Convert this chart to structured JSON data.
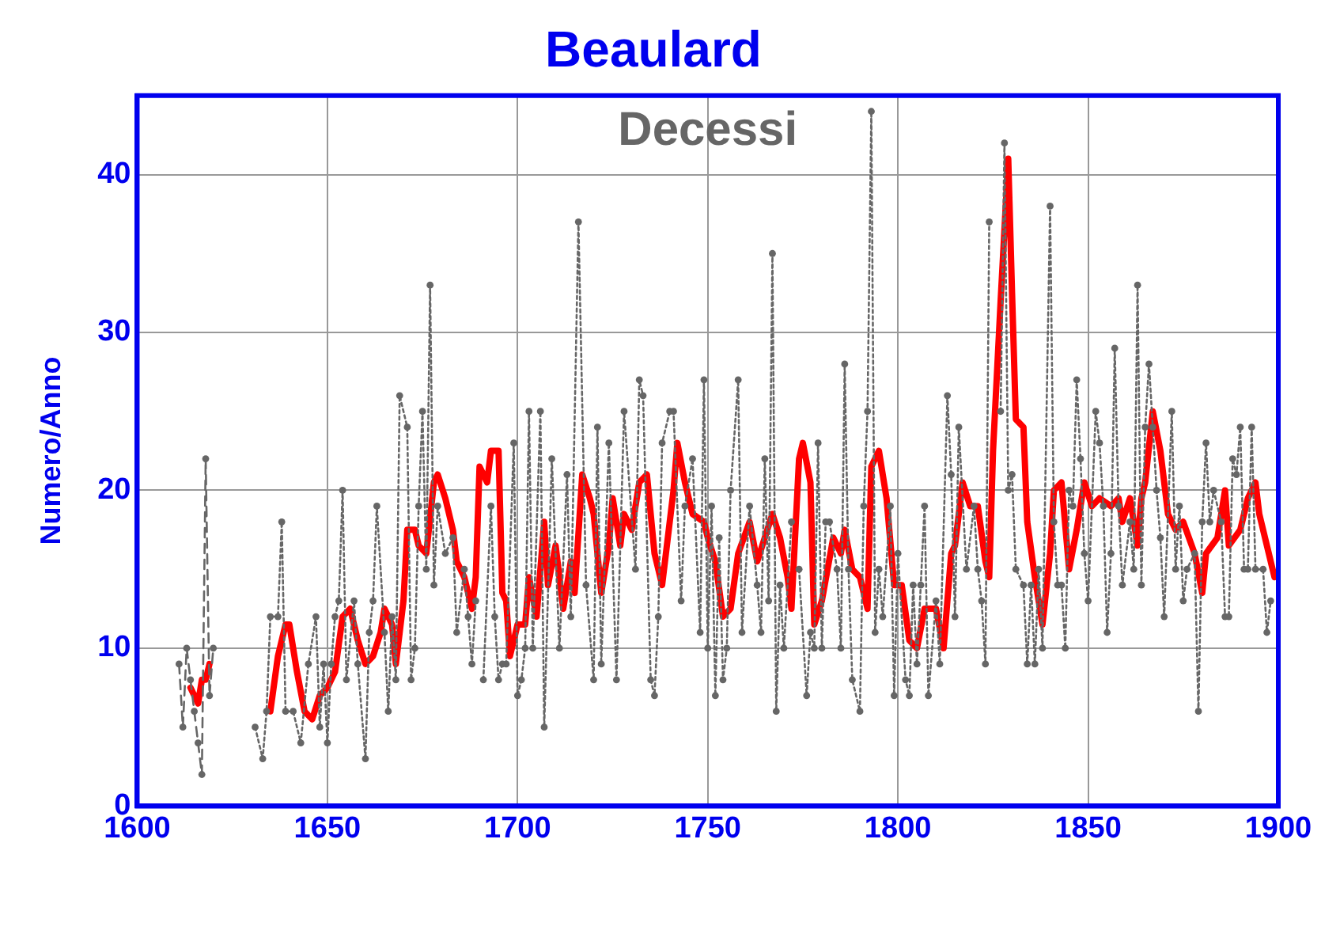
{
  "chart_data": {
    "type": "line",
    "title": "Beaulard",
    "ylabel": "Numero/Anno",
    "annotations": [
      "Decessi"
    ],
    "xlim": [
      1600,
      1900
    ],
    "xticks": [
      1600,
      1650,
      1700,
      1750,
      1800,
      1850,
      1900
    ],
    "ylim": [
      0,
      45
    ],
    "yticks": [
      0,
      10,
      20,
      30,
      40
    ],
    "grid": true,
    "legend": false,
    "series": [
      {
        "color": "#666666",
        "marker": "circle",
        "line_style": "dashed",
        "x": [
          1611,
          1612,
          1613,
          1614,
          1615,
          1616,
          1617,
          1618,
          1619,
          1620
        ],
        "values": [
          9,
          5,
          10,
          8,
          6,
          4,
          2,
          22,
          7,
          10
        ]
      },
      {
        "color": "#666666",
        "marker": "circle",
        "line_style": "dotted",
        "x": [
          1631,
          1633,
          1634,
          1635,
          1637,
          1638,
          1639,
          1641,
          1643,
          1645,
          1647,
          1648,
          1649,
          1650,
          1651,
          1652,
          1653,
          1654,
          1655,
          1657,
          1658,
          1660,
          1661,
          1662,
          1663,
          1665,
          1666,
          1667,
          1668,
          1669,
          1671,
          1672,
          1673,
          1674,
          1675,
          1676,
          1677,
          1678,
          1679,
          1681,
          1683,
          1684,
          1686,
          1687,
          1688,
          1689,
          1690,
          1691,
          1693,
          1694,
          1695,
          1696,
          1697,
          1699,
          1700,
          1701,
          1702,
          1703,
          1704,
          1706,
          1707,
          1709,
          1711,
          1713,
          1714,
          1716,
          1718,
          1720,
          1721,
          1722,
          1724,
          1726,
          1728,
          1731,
          1732,
          1733,
          1735,
          1736,
          1737,
          1738,
          1740,
          1741,
          1743,
          1744,
          1746,
          1748,
          1749,
          1750,
          1751,
          1752,
          1753,
          1754,
          1755,
          1756,
          1758,
          1759,
          1761,
          1763,
          1764,
          1765,
          1766,
          1767,
          1768,
          1769,
          1770,
          1772,
          1773,
          1774,
          1776,
          1777,
          1778,
          1779,
          1780,
          1781,
          1782,
          1784,
          1785,
          1786,
          1787,
          1788,
          1790,
          1791,
          1792,
          1793,
          1794,
          1795,
          1796,
          1798,
          1799,
          1800,
          1802,
          1803,
          1804,
          1805,
          1806,
          1807,
          1808,
          1810,
          1811,
          1813,
          1814,
          1815,
          1816,
          1818,
          1820,
          1821,
          1822,
          1823,
          1824,
          1825,
          1826,
          1827,
          1828,
          1829,
          1830,
          1831,
          1833,
          1834,
          1835,
          1836,
          1837,
          1838,
          1840,
          1841,
          1842,
          1843,
          1844,
          1845,
          1846,
          1847,
          1848,
          1849,
          1850,
          1852,
          1853,
          1854,
          1855,
          1856,
          1857,
          1858,
          1859,
          1861,
          1862,
          1863,
          1864,
          1865,
          1866,
          1867,
          1868,
          1869,
          1870,
          1872,
          1873,
          1874,
          1875,
          1876,
          1878,
          1879,
          1880,
          1881,
          1882,
          1883,
          1885,
          1886,
          1887,
          1888,
          1889,
          1890,
          1891,
          1892,
          1893,
          1894,
          1896,
          1897,
          1898
        ],
        "values": [
          5,
          3,
          6,
          12,
          12,
          18,
          6,
          6,
          4,
          9,
          12,
          5,
          9,
          4,
          9,
          12,
          13,
          20,
          8,
          13,
          9,
          3,
          11,
          13,
          19,
          11,
          6,
          12,
          8,
          26,
          24,
          8,
          10,
          19,
          25,
          15,
          33,
          14,
          19,
          16,
          17,
          11,
          15,
          12,
          9,
          13,
          null,
          8,
          19,
          12,
          8,
          9,
          9,
          23,
          7,
          8,
          10,
          25,
          10,
          25,
          5,
          22,
          10,
          21,
          12,
          37,
          14,
          8,
          24,
          9,
          23,
          8,
          25,
          15,
          27,
          26,
          8,
          7,
          12,
          23,
          25,
          25,
          13,
          19,
          22,
          11,
          27,
          10,
          19,
          7,
          17,
          8,
          10,
          20,
          27,
          11,
          19,
          14,
          11,
          22,
          13,
          35,
          6,
          14,
          10,
          18,
          null,
          15,
          7,
          11,
          10,
          23,
          10,
          18,
          18,
          15,
          10,
          28,
          15,
          8,
          6,
          19,
          25,
          44,
          11,
          15,
          12,
          19,
          7,
          16,
          8,
          7,
          14,
          9,
          14,
          19,
          7,
          13,
          9,
          26,
          21,
          12,
          24,
          15,
          19,
          15,
          13,
          9,
          37,
          null,
          null,
          25,
          42,
          20,
          21,
          15,
          14,
          9,
          14,
          9,
          15,
          10,
          38,
          18,
          14,
          14,
          10,
          20,
          19,
          27,
          22,
          16,
          13,
          25,
          23,
          19,
          11,
          16,
          29,
          19,
          14,
          18,
          15,
          33,
          14,
          24,
          28,
          24,
          20,
          17,
          12,
          25,
          15,
          19,
          13,
          15,
          16,
          6,
          18,
          23,
          18,
          20,
          18,
          12,
          12,
          22,
          21,
          24,
          15,
          15,
          24,
          15,
          15,
          11,
          13
        ]
      },
      {
        "color": "#ff0000",
        "marker": "none",
        "line_style": "solid",
        "x": [
          1614,
          1615,
          1616,
          1617,
          1618,
          1619,
          1625,
          1635,
          1637,
          1639,
          1640,
          1642,
          1644,
          1646,
          1648,
          1650,
          1652,
          1654,
          1656,
          1658,
          1660,
          1662,
          1664,
          1665,
          1667,
          1668,
          1670,
          1671,
          1673,
          1674,
          1676,
          1678,
          1679,
          1681,
          1683,
          1684,
          1686,
          1688,
          1689,
          1690,
          1692,
          1693,
          1695,
          1696,
          1697,
          1698,
          1700,
          1702,
          1703,
          1705,
          1707,
          1708,
          1710,
          1712,
          1714,
          1715,
          1717,
          1719,
          1720,
          1722,
          1724,
          1725,
          1727,
          1728,
          1730,
          1732,
          1734,
          1736,
          1738,
          1741,
          1742,
          1744,
          1746,
          1749,
          1750,
          1752,
          1754,
          1756,
          1758,
          1761,
          1763,
          1765,
          1767,
          1769,
          1771,
          1772,
          1774,
          1775,
          1777,
          1778,
          1780,
          1783,
          1785,
          1786,
          1788,
          1790,
          1792,
          1793,
          1795,
          1797,
          1799,
          1801,
          1803,
          1805,
          1807,
          1810,
          1812,
          1814,
          1815,
          1817,
          1819,
          1821,
          1823,
          1824,
          1825,
          1827,
          1829,
          1830,
          1831,
          1833,
          1834,
          1836,
          1838,
          1840,
          1841,
          1843,
          1845,
          1847,
          1849,
          1851,
          1853,
          1856,
          1858,
          1859,
          1861,
          1863,
          1864,
          1865,
          1867,
          1869,
          1871,
          1873,
          1875,
          1878,
          1880,
          1881,
          1884,
          1886,
          1887,
          1890,
          1892,
          1894,
          1895,
          1897,
          1899
        ],
        "values": [
          7.5,
          7,
          6.5,
          8,
          8,
          9,
          null,
          6,
          9.5,
          11.5,
          11.5,
          8.5,
          6,
          5.5,
          7,
          7.5,
          8.5,
          12,
          12.5,
          10.5,
          9,
          9.5,
          11,
          12.5,
          11.5,
          9,
          13,
          17.5,
          17.5,
          16.5,
          16,
          20.5,
          21,
          19.5,
          17.5,
          15.5,
          14.5,
          12.5,
          14.5,
          21.5,
          20.5,
          22.5,
          22.5,
          13.5,
          13,
          9.5,
          11.5,
          11.5,
          14.5,
          12,
          18,
          14,
          16.5,
          12.5,
          15.5,
          13.5,
          21,
          19.5,
          18.5,
          13.5,
          16.5,
          19.5,
          16.5,
          18.5,
          17.5,
          20.5,
          21,
          16,
          14,
          20,
          23,
          20.5,
          18.5,
          18,
          17,
          15.5,
          12,
          12.5,
          16,
          18,
          15.5,
          17,
          18.5,
          17,
          14.5,
          12.5,
          22,
          23,
          20.5,
          11.5,
          13,
          17,
          16,
          17.5,
          15,
          14.5,
          12.5,
          21.5,
          22.5,
          19.5,
          14,
          14,
          10.5,
          10,
          12.5,
          12.5,
          10,
          16,
          16.5,
          20.5,
          19,
          19,
          15.5,
          14.5,
          22.5,
          32,
          41,
          32.5,
          24.5,
          24,
          18,
          14.5,
          11.5,
          16,
          20,
          20.5,
          15,
          17.5,
          20.5,
          19,
          19.5,
          19,
          19.5,
          18,
          19.5,
          16.5,
          19.5,
          20.5,
          25,
          22.5,
          18.5,
          17.5,
          18,
          16,
          13.5,
          16,
          17,
          20,
          16.5,
          17.5,
          19.5,
          20.5,
          18.5,
          16.5,
          14.5
        ]
      }
    ]
  }
}
